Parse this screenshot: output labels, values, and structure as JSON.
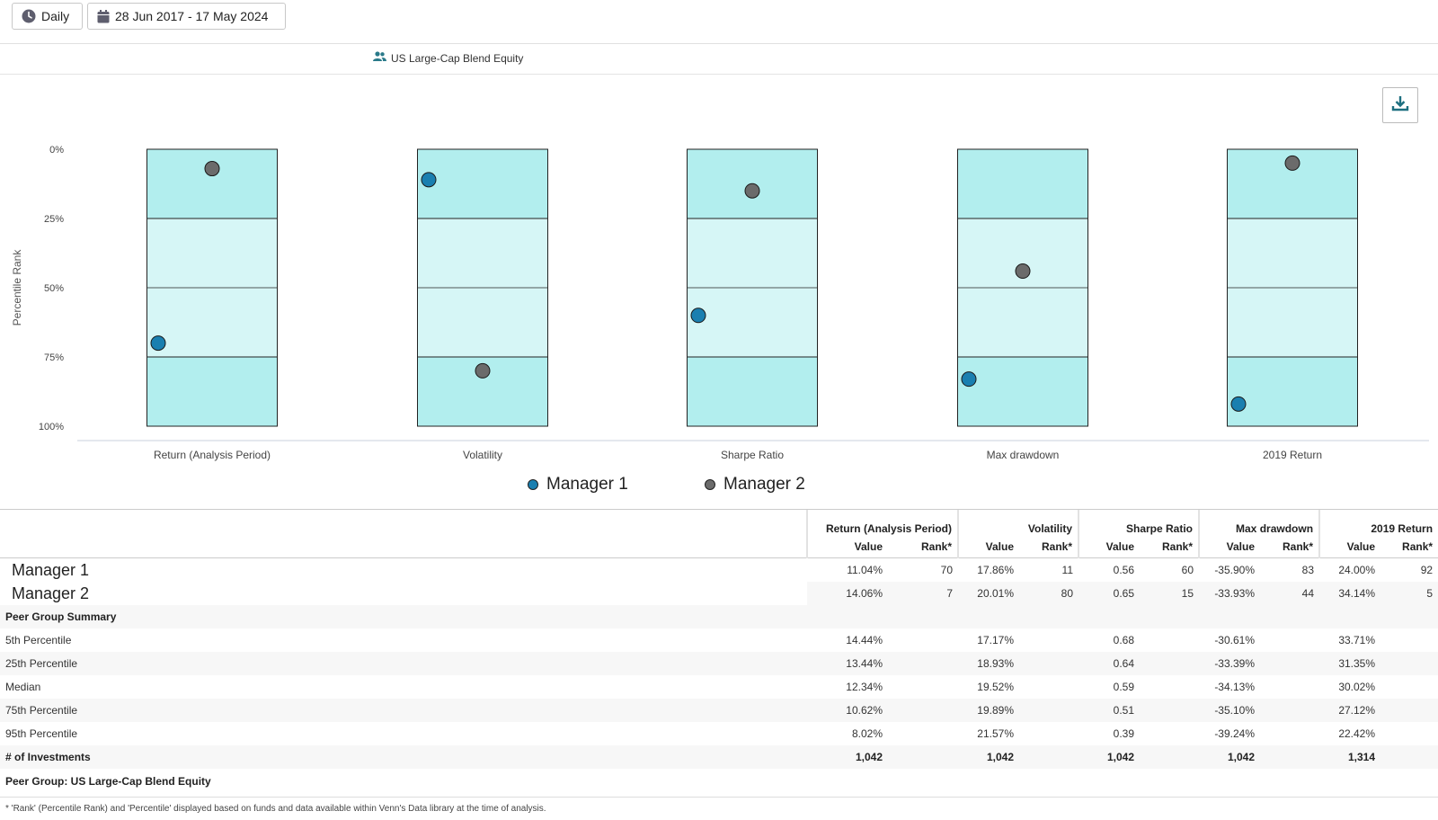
{
  "toolbar": {
    "frequency_label": "Daily",
    "date_range_label": "28 Jun 2017 - 17 May 2024"
  },
  "peer_group": {
    "label": "US Large-Cap Blend Equity"
  },
  "icons": {
    "frequency": "clock-icon",
    "date": "calendar-icon",
    "peer": "users-icon",
    "download": "download-icon"
  },
  "colors": {
    "band_outer": "#b2eeee",
    "band_inner": "#d6f6f6",
    "manager_1": "#1a7fb0",
    "manager_2": "#6b6b6b"
  },
  "chart_data": {
    "type": "scatter",
    "ylabel": "Percentile Rank",
    "y_ticks": [
      "0%",
      "25%",
      "50%",
      "75%",
      "100%"
    ],
    "ylim": [
      0,
      100
    ],
    "y_inverted": true,
    "categories": [
      "Return (Analysis Period)",
      "Volatility",
      "Sharpe Ratio",
      "Max drawdown",
      "2019 Return"
    ],
    "bands": [
      0,
      25,
      50,
      75,
      100
    ],
    "series": [
      {
        "name": "Manager 1",
        "values": [
          70,
          11,
          60,
          83,
          92
        ]
      },
      {
        "name": "Manager 2",
        "values": [
          7,
          80,
          15,
          44,
          5
        ]
      }
    ],
    "legend_position": "bottom-center"
  },
  "table": {
    "metric_headers": [
      "Return (Analysis Period)",
      "Volatility",
      "Sharpe Ratio",
      "Max drawdown",
      "2019 Return"
    ],
    "sub_value": "Value",
    "sub_rank": "Rank*",
    "managers": [
      {
        "name": "Manager 1",
        "cells": [
          "11.04%",
          "70",
          "17.86%",
          "11",
          "0.56",
          "60",
          "-35.90%",
          "83",
          "24.00%",
          "92"
        ]
      },
      {
        "name": "Manager 2",
        "cells": [
          "14.06%",
          "7",
          "20.01%",
          "80",
          "0.65",
          "15",
          "-33.93%",
          "44",
          "34.14%",
          "5"
        ]
      }
    ],
    "summary_title": "Peer Group Summary",
    "percentiles": [
      {
        "label": "5th Percentile",
        "values": [
          "14.44%",
          "17.17%",
          "0.68",
          "-30.61%",
          "33.71%"
        ]
      },
      {
        "label": "25th Percentile",
        "values": [
          "13.44%",
          "18.93%",
          "0.64",
          "-33.39%",
          "31.35%"
        ]
      },
      {
        "label": "Median",
        "values": [
          "12.34%",
          "19.52%",
          "0.59",
          "-34.13%",
          "30.02%"
        ]
      },
      {
        "label": "75th Percentile",
        "values": [
          "10.62%",
          "19.89%",
          "0.51",
          "-35.10%",
          "27.12%"
        ]
      },
      {
        "label": "95th Percentile",
        "values": [
          "8.02%",
          "21.57%",
          "0.39",
          "-39.24%",
          "22.42%"
        ]
      }
    ],
    "investments": {
      "label": "# of Investments",
      "values": [
        "1,042",
        "1,042",
        "1,042",
        "1,042",
        "1,314"
      ]
    },
    "peer_group_line": "Peer Group:  US Large-Cap Blend Equity"
  },
  "footnote": "* 'Rank' (Percentile Rank) and 'Percentile' displayed based on funds and data available within Venn's Data library at the time of analysis."
}
